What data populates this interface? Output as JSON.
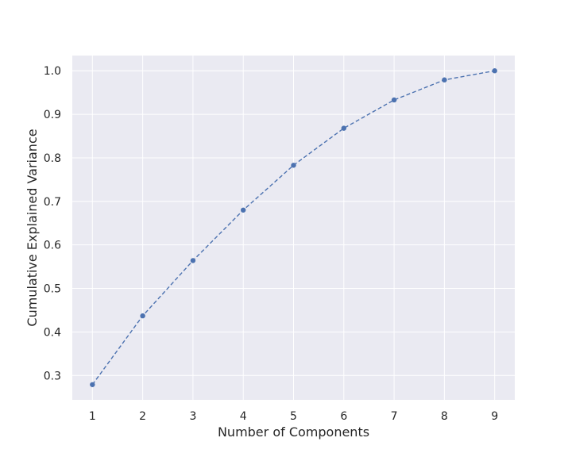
{
  "chart_data": {
    "type": "line",
    "title": "",
    "xlabel": "Number of Components",
    "ylabel": "Cumulative Explained Variance",
    "x": [
      1,
      2,
      3,
      4,
      5,
      6,
      7,
      8,
      9
    ],
    "series": [
      {
        "values": [
          0.279,
          0.437,
          0.564,
          0.68,
          0.783,
          0.868,
          0.933,
          0.979,
          1.0
        ]
      }
    ],
    "xticks": [
      "1",
      "2",
      "3",
      "4",
      "5",
      "6",
      "7",
      "8",
      "9"
    ],
    "yticks": [
      "0.3",
      "0.4",
      "0.5",
      "0.6",
      "0.7",
      "0.8",
      "0.9",
      "1.0"
    ],
    "xlim": [
      0.6,
      9.4
    ],
    "ylim": [
      0.244,
      1.035
    ],
    "line_style": "dashed",
    "marker": "circle",
    "grid": true,
    "legend": "none",
    "colors": {
      "line": "#4c72b0",
      "plot_background": "#eaeaf2",
      "grid": "#ffffff",
      "text": "#262626"
    }
  }
}
